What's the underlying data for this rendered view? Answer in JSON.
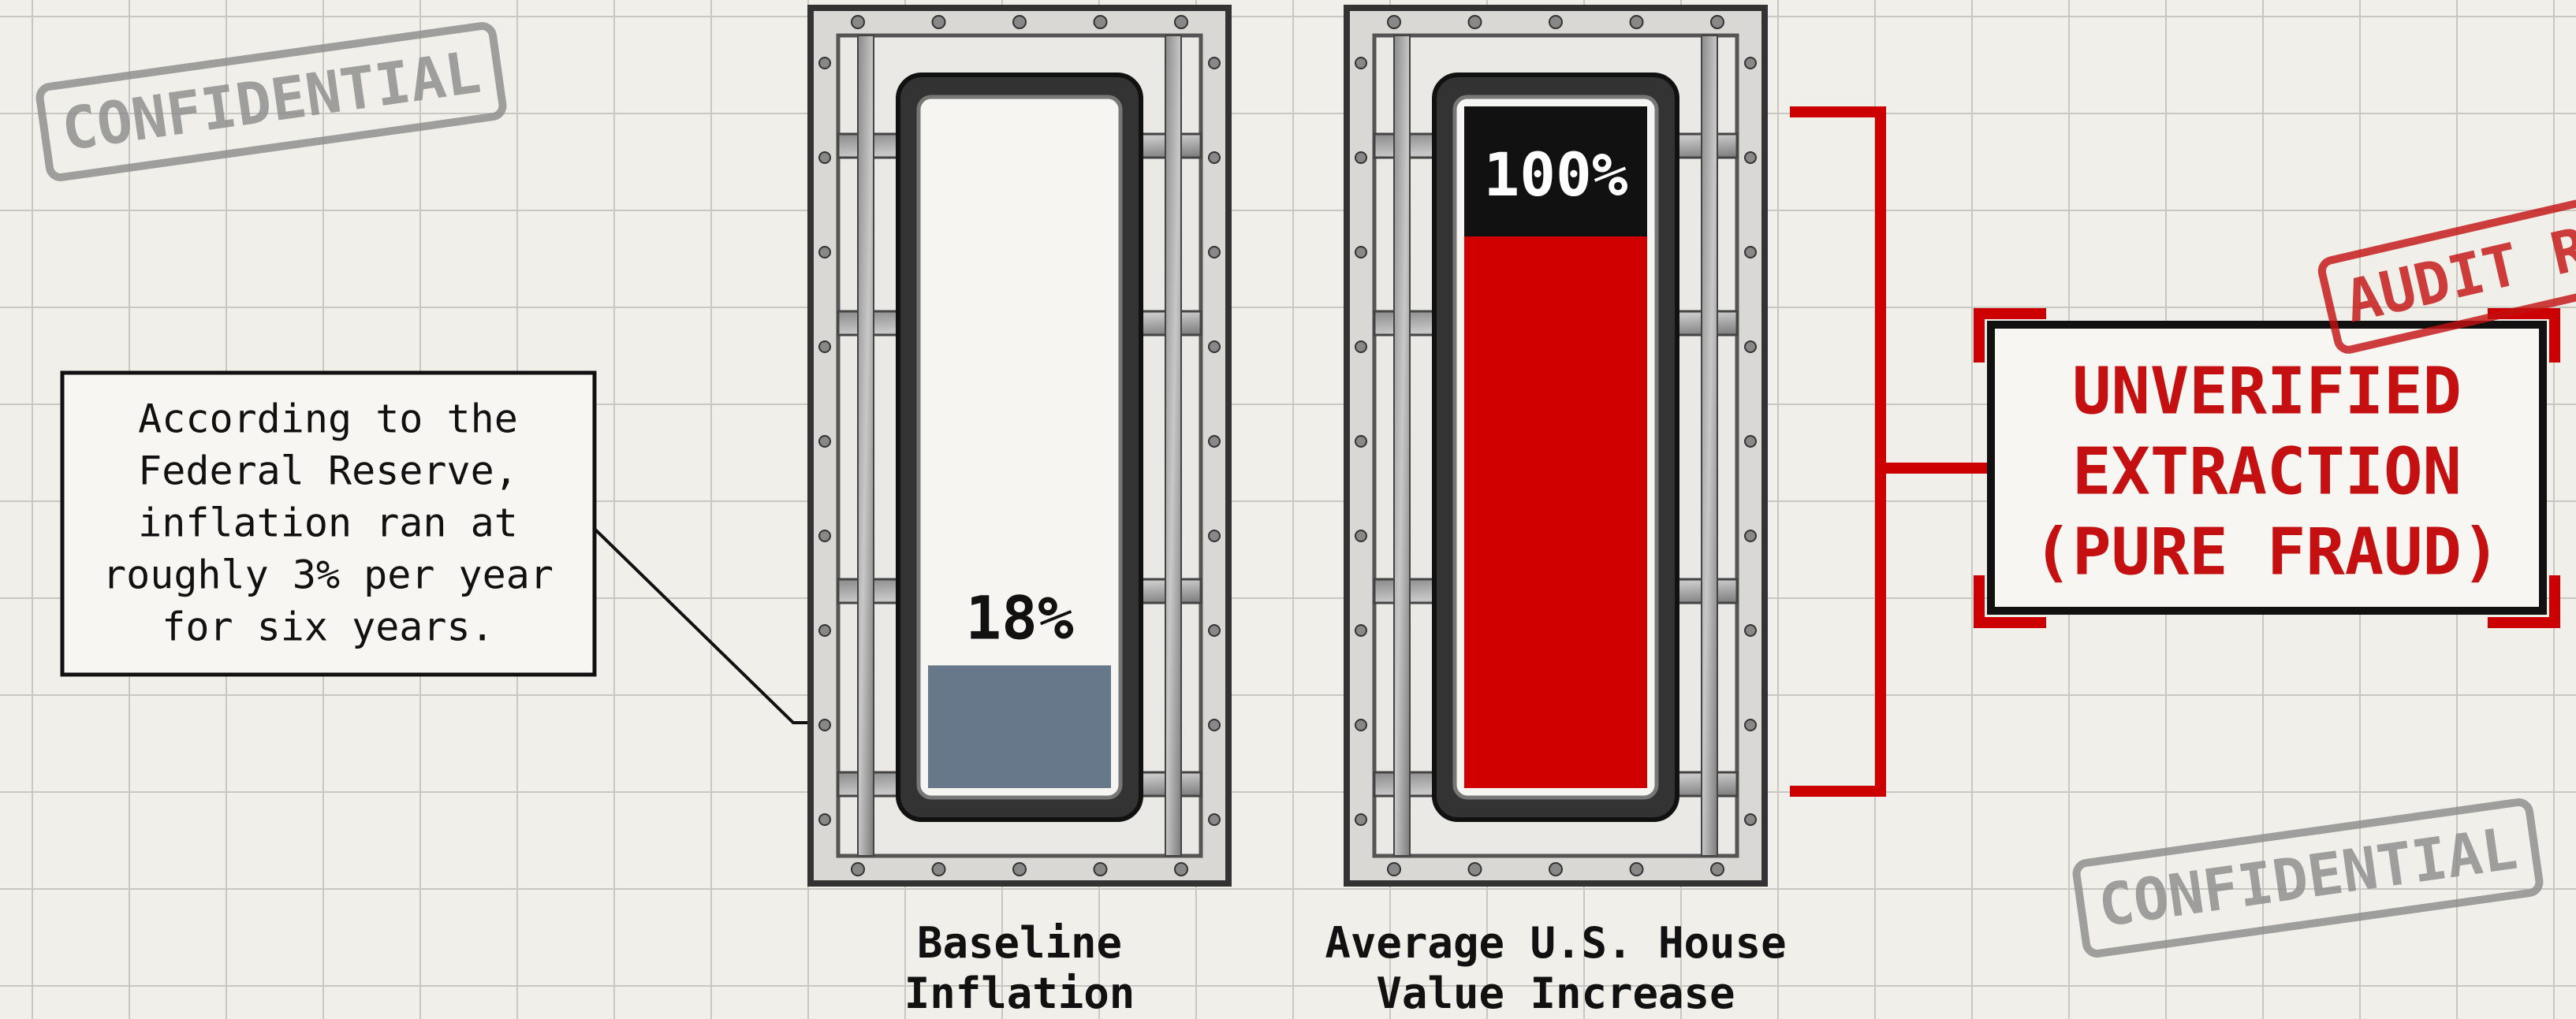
{
  "chart_data": {
    "type": "bar",
    "categories": [
      "Baseline Inflation",
      "Average U.S. House Value Increase"
    ],
    "values": [
      18,
      100
    ],
    "value_labels": [
      "18%",
      "100%"
    ],
    "colors": [
      "#66788a",
      "#d00000"
    ],
    "ylim": [
      0,
      100
    ]
  },
  "annotations": {
    "callout": [
      "According to the",
      "Federal Reserve,",
      "inflation ran at",
      "roughly 3% per year",
      "for six years."
    ],
    "verdict": [
      "UNVERIFIED",
      "EXTRACTION",
      "(PURE FRAUD)"
    ],
    "stamps": [
      "CONFIDENTIAL",
      "CONFIDENTIAL",
      "AUDIT RE"
    ]
  }
}
